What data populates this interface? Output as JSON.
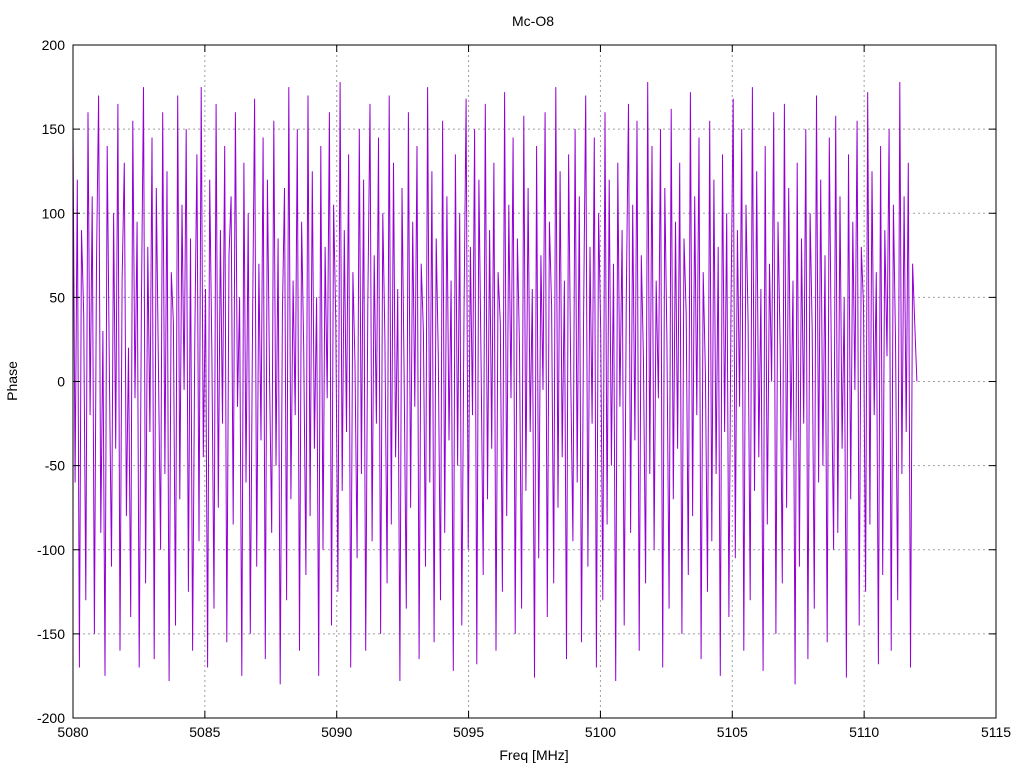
{
  "chart_data": {
    "type": "line",
    "title": "Mc-O8",
    "xlabel": "Freq [MHz]",
    "ylabel": "Phase",
    "xlim": [
      5080,
      5115
    ],
    "ylim": [
      -200,
      200
    ],
    "xticks": [
      5080,
      5085,
      5090,
      5095,
      5100,
      5105,
      5110,
      5115
    ],
    "yticks": [
      -200,
      -150,
      -100,
      -50,
      0,
      50,
      100,
      150,
      200
    ],
    "grid": true,
    "x_start": 5080,
    "x_end": 5112,
    "series": [
      {
        "color": "#9400d3",
        "description": "rapidly wrapping phase, oscillating between about -180 and 180 degrees",
        "values": [
          150,
          -60,
          120,
          -170,
          90,
          40,
          -130,
          160,
          -20,
          110,
          -150,
          70,
          170,
          -90,
          30,
          -175,
          140,
          10,
          -110,
          100,
          -40,
          165,
          -160,
          60,
          130,
          -80,
          20,
          -140,
          155,
          -10,
          95,
          -170,
          45,
          175,
          -120,
          80,
          -30,
          145,
          -165,
          115,
          5,
          -100,
          160,
          -55,
          125,
          -178,
          65,
          35,
          -145,
          170,
          -70,
          105,
          -5,
          150,
          -125,
          85,
          -160,
          25,
          135,
          -95,
          175,
          -45,
          55,
          -170,
          120,
          15,
          -135,
          165,
          -75,
          90,
          -25,
          140,
          -155,
          75,
          110,
          -85,
          160,
          -15,
          50,
          -175,
          130,
          -60,
          100,
          -150,
          30,
          168,
          -110,
          70,
          -35,
          145,
          -165,
          120,
          0,
          -90,
          155,
          -50,
          85,
          -180,
          40,
          115,
          -130,
          175,
          -70,
          60,
          -20,
          150,
          -160,
          95,
          20,
          -115,
          170,
          -80,
          125,
          -40,
          50,
          -175,
          140,
          -100,
          80,
          -10,
          160,
          -145,
          105,
          35,
          -125,
          178,
          -65,
          90,
          -30,
          135,
          -170,
          65,
          10,
          -105,
          150,
          -55,
          120,
          -160,
          45,
          165,
          -95,
          75,
          -25,
          145,
          -150,
          100,
          25,
          -120,
          170,
          -85,
          130,
          -45,
          55,
          -178,
          115,
          5,
          -135,
          160,
          -75,
          95,
          -15,
          140,
          -165,
          70,
          30,
          -110,
          175,
          -60,
          125,
          -155,
          85,
          15,
          -130,
          155,
          -90,
          110,
          -35,
          60,
          -172,
          135,
          -50,
          100,
          -145,
          40,
          168,
          -100,
          80,
          -20,
          150,
          -168,
          120,
          10,
          -115,
          165,
          -70,
          90,
          -40,
          130,
          -160,
          65,
          35,
          -125,
          172,
          -80,
          105,
          -10,
          145,
          -150,
          85,
          20,
          -135,
          158,
          -65,
          115,
          -30,
          55,
          -176,
          140,
          -105,
          75,
          -5,
          160,
          -140,
          95,
          45,
          -120,
          175,
          -75,
          125,
          -45,
          60,
          -165,
          135,
          0,
          -95,
          150,
          -60,
          110,
          -155,
          40,
          170,
          -110,
          80,
          -25,
          145,
          -170,
          100,
          30,
          -130,
          160,
          -85,
          120,
          -50,
          70,
          -178,
          130,
          -15,
          90,
          -145,
          50,
          165,
          -90,
          105,
          -35,
          155,
          -160,
          75,
          15,
          -120,
          178,
          -55,
          140,
          -100,
          60,
          -10,
          150,
          -170,
          115,
          25,
          -135,
          162,
          -70,
          95,
          -40,
          130,
          -150,
          85,
          40,
          -115,
          172,
          -80,
          110,
          -20,
          145,
          -165,
          65,
          5,
          -125,
          155,
          -95,
          120,
          -55,
          80,
          -175,
          135,
          -30,
          100,
          -140,
          45,
          168,
          -105,
          90,
          -15,
          150,
          -160,
          105,
          35,
          -130,
          175,
          -65,
          125,
          -45,
          55,
          -172,
          140,
          -85,
          70,
          0,
          160,
          -150,
          95,
          20,
          -120,
          165,
          -75,
          115,
          -35,
          60,
          -180,
          130,
          -110,
          85,
          -25,
          150,
          -165,
          100,
          30,
          -135,
          170,
          -60,
          120,
          -50,
          75,
          -155,
          145,
          10,
          -100,
          158,
          -90,
          110,
          -40,
          50,
          -176,
          135,
          -70,
          95,
          -5,
          155,
          -145,
          80,
          45,
          -125,
          172,
          -85,
          125,
          -20,
          65,
          -168,
          140,
          -115,
          90,
          15,
          150,
          -160,
          105,
          25,
          -130,
          178,
          -55,
          110,
          -30,
          130,
          -170,
          70,
          35,
          0
        ]
      }
    ]
  }
}
